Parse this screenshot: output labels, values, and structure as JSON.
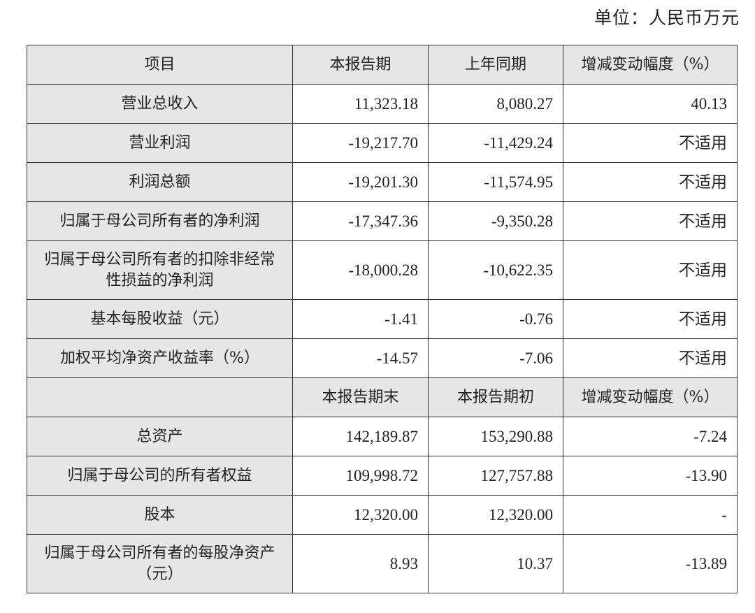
{
  "unit_label": "单位：人民币万元",
  "header": [
    "项目",
    "本报告期",
    "上年同期",
    "增减变动幅度（%）"
  ],
  "rows": [
    [
      "营业总收入",
      "11,323.18",
      "8,080.27",
      "40.13"
    ],
    [
      "营业利润",
      "-19,217.70",
      "-11,429.24",
      "不适用"
    ],
    [
      "利润总额",
      "-19,201.30",
      "-11,574.95",
      "不适用"
    ],
    [
      "归属于母公司所有者的净利润",
      "-17,347.36",
      "-9,350.28",
      "不适用"
    ],
    [
      "归属于母公司所有者的扣除非经常性损益的净利润",
      "-18,000.28",
      "-10,622.35",
      "不适用"
    ],
    [
      "基本每股收益（元）",
      "-1.41",
      "-0.76",
      "不适用"
    ],
    [
      "加权平均净资产收益率（%）",
      "-14.57",
      "-7.06",
      "不适用"
    ]
  ],
  "header2": [
    "",
    "本报告期末",
    "本报告期初",
    "增减变动幅度（%）"
  ],
  "rows2": [
    [
      "总资产",
      "142,189.87",
      "153,290.88",
      "-7.24"
    ],
    [
      "归属于母公司的所有者权益",
      "109,998.72",
      "127,757.88",
      "-13.90"
    ],
    [
      "股本",
      "12,320.00",
      "12,320.00",
      "-"
    ],
    [
      "归属于母公司所有者的每股净资产（元）",
      "8.93",
      "10.37",
      "-13.89"
    ]
  ]
}
